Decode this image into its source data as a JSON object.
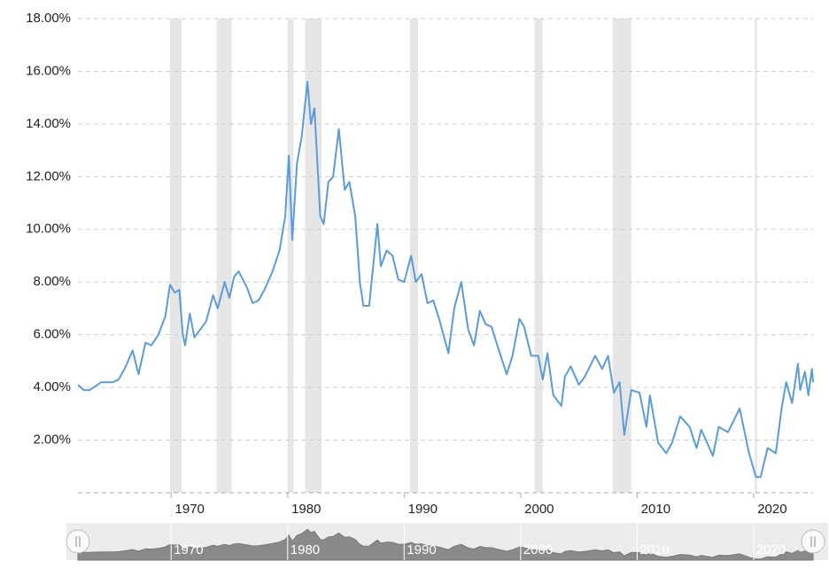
{
  "chart_data": {
    "type": "line",
    "color": "#5b9bd8",
    "x": [
      1962.0,
      1962.5,
      1963.0,
      1964.0,
      1965.0,
      1965.5,
      1966.0,
      1966.7,
      1967.2,
      1967.8,
      1968.3,
      1968.9,
      1969.5,
      1969.9,
      1970.3,
      1970.7,
      1971.0,
      1971.2,
      1971.6,
      1972.0,
      1972.5,
      1973.0,
      1973.6,
      1974.0,
      1974.6,
      1975.0,
      1975.4,
      1975.8,
      1976.5,
      1977.0,
      1977.5,
      1978.0,
      1978.7,
      1979.3,
      1979.8,
      1980.1,
      1980.4,
      1980.8,
      1981.2,
      1981.7,
      1982.0,
      1982.3,
      1982.8,
      1983.1,
      1983.5,
      1983.9,
      1984.4,
      1984.9,
      1985.3,
      1985.8,
      1986.2,
      1986.5,
      1987.0,
      1987.7,
      1988.0,
      1988.5,
      1989.0,
      1989.5,
      1990.0,
      1990.6,
      1991.0,
      1991.5,
      1992.0,
      1992.5,
      1993.0,
      1993.8,
      1994.3,
      1994.9,
      1995.5,
      1996.0,
      1996.5,
      1997.0,
      1997.5,
      1998.0,
      1998.8,
      1999.3,
      1999.9,
      2000.3,
      2000.9,
      2001.5,
      2001.9,
      2002.3,
      2002.8,
      2003.5,
      2003.8,
      2004.3,
      2005.0,
      2005.5,
      2006.4,
      2007.0,
      2007.5,
      2008.0,
      2008.5,
      2008.9,
      2009.5,
      2010.2,
      2010.8,
      2011.1,
      2011.8,
      2012.5,
      2013.0,
      2013.7,
      2014.5,
      2015.1,
      2015.5,
      2016.5,
      2017.0,
      2017.8,
      2018.8,
      2019.6,
      2020.2,
      2020.6,
      2021.2,
      2021.9,
      2022.4,
      2022.8,
      2023.3,
      2023.8,
      2024.0,
      2024.4,
      2024.7,
      2025.0,
      2025.1
    ],
    "values": [
      4.1,
      3.9,
      3.9,
      4.2,
      4.2,
      4.3,
      4.7,
      5.4,
      4.5,
      5.7,
      5.6,
      6.0,
      6.7,
      7.9,
      7.6,
      7.7,
      6.0,
      5.6,
      6.8,
      5.9,
      6.2,
      6.5,
      7.5,
      7.0,
      8.0,
      7.4,
      8.2,
      8.4,
      7.8,
      7.2,
      7.3,
      7.7,
      8.4,
      9.2,
      10.5,
      12.8,
      9.6,
      12.5,
      13.5,
      15.6,
      14.0,
      14.6,
      10.5,
      10.2,
      11.8,
      12.0,
      13.8,
      11.5,
      11.8,
      10.5,
      8.0,
      7.1,
      7.1,
      10.2,
      8.6,
      9.2,
      9.0,
      8.1,
      8.0,
      9.0,
      8.0,
      8.3,
      7.2,
      7.3,
      6.6,
      5.3,
      7.0,
      8.0,
      6.2,
      5.6,
      6.9,
      6.4,
      6.3,
      5.6,
      4.5,
      5.2,
      6.6,
      6.3,
      5.2,
      5.2,
      4.3,
      5.3,
      3.7,
      3.3,
      4.4,
      4.8,
      4.1,
      4.4,
      5.2,
      4.7,
      5.2,
      3.8,
      4.2,
      2.2,
      3.9,
      3.8,
      2.5,
      3.7,
      1.9,
      1.5,
      1.9,
      2.9,
      2.5,
      1.7,
      2.4,
      1.4,
      2.5,
      2.3,
      3.2,
      1.5,
      0.6,
      0.6,
      1.7,
      1.5,
      3.2,
      4.2,
      3.4,
      4.9,
      3.9,
      4.6,
      3.7,
      4.7,
      4.2
    ],
    "recessions": [
      [
        1969.9,
        1970.9
      ],
      [
        1973.9,
        1975.2
      ],
      [
        1980.0,
        1980.5
      ],
      [
        1981.5,
        1982.9
      ],
      [
        1990.5,
        1991.2
      ],
      [
        2001.2,
        2001.9
      ],
      [
        2007.9,
        2009.5
      ],
      [
        2020.1,
        2020.3
      ]
    ],
    "xlim": [
      1962.0,
      2025.1
    ],
    "xticks": [
      1970,
      1980,
      1990,
      2000,
      2010,
      2020
    ],
    "ylim": [
      0,
      18
    ],
    "yticks": [
      {
        "value": 2,
        "label": "2.00%"
      },
      {
        "value": 4,
        "label": "4.00%"
      },
      {
        "value": 6,
        "label": "6.00%"
      },
      {
        "value": 8,
        "label": "8.00%"
      },
      {
        "value": 10,
        "label": "10.00%"
      },
      {
        "value": 12,
        "label": "12.00%"
      },
      {
        "value": 14,
        "label": "14.00%"
      },
      {
        "value": 16,
        "label": "16.00%"
      },
      {
        "value": 18,
        "label": "18.00%"
      }
    ],
    "grid": true
  }
}
